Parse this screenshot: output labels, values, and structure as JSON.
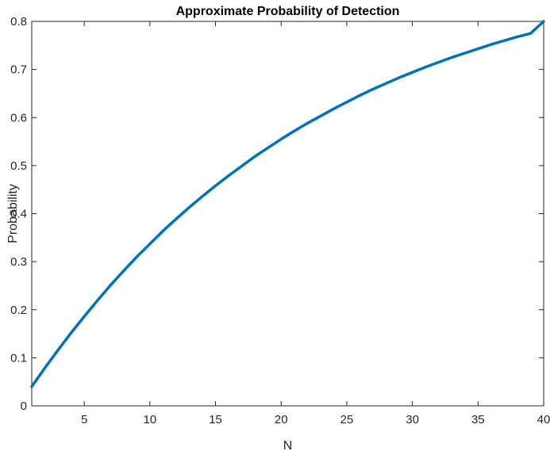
{
  "chart_data": {
    "type": "line",
    "title": "Approximate Probability of Detection",
    "xlabel": "N",
    "ylabel": "Probability",
    "xlim": [
      1,
      40
    ],
    "ylim": [
      0,
      0.8
    ],
    "xticks": [
      5,
      10,
      15,
      20,
      25,
      30,
      35,
      40
    ],
    "yticks": [
      0,
      0.1,
      0.2,
      0.3,
      0.4,
      0.5,
      0.6,
      0.7,
      0.8
    ],
    "xtick_labels": [
      "5",
      "10",
      "15",
      "20",
      "25",
      "30",
      "35",
      "40"
    ],
    "ytick_labels": [
      "0",
      "0.1",
      "0.2",
      "0.3",
      "0.4",
      "0.5",
      "0.6",
      "0.7",
      "0.8"
    ],
    "grid": false,
    "legend": "none",
    "series": [
      {
        "color": "#0072BD",
        "x": [
          1,
          2,
          3,
          4,
          5,
          6,
          7,
          8,
          9,
          10,
          11,
          12,
          13,
          14,
          15,
          16,
          17,
          18,
          19,
          20,
          21,
          22,
          23,
          24,
          25,
          26,
          27,
          28,
          29,
          30,
          31,
          32,
          33,
          34,
          35,
          36,
          37,
          38,
          39,
          40
        ],
        "y": [
          0.04,
          0.079,
          0.116,
          0.152,
          0.186,
          0.219,
          0.251,
          0.281,
          0.31,
          0.337,
          0.364,
          0.389,
          0.413,
          0.436,
          0.458,
          0.479,
          0.499,
          0.519,
          0.537,
          0.555,
          0.572,
          0.588,
          0.603,
          0.618,
          0.632,
          0.646,
          0.659,
          0.671,
          0.683,
          0.694,
          0.705,
          0.715,
          0.725,
          0.734,
          0.743,
          0.752,
          0.76,
          0.768,
          0.775,
          0.8
        ]
      }
    ]
  }
}
